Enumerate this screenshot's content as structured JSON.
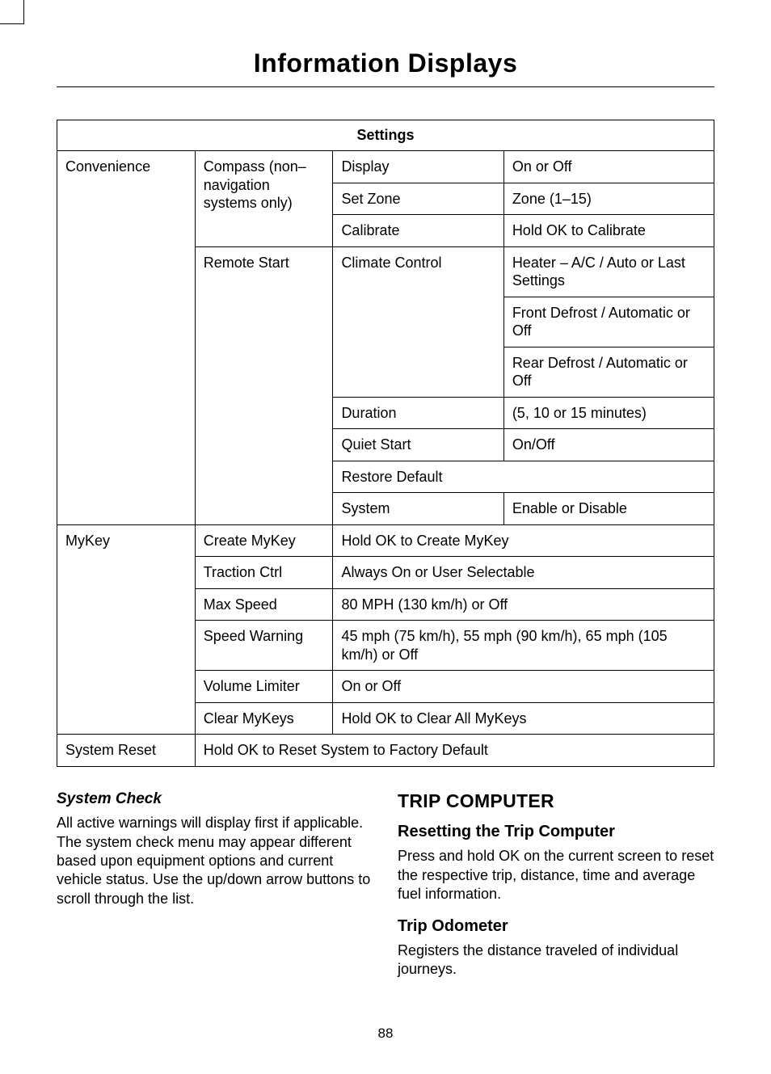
{
  "page": {
    "title": "Information Displays",
    "number": "88"
  },
  "table": {
    "header": "Settings",
    "col_widths": [
      "21%",
      "21%",
      "26%",
      "32%"
    ],
    "rows": [
      {
        "c0": {
          "text": "Convenience",
          "rowspan": 9
        },
        "c1": {
          "text": "Compass (non–navigation systems only)",
          "rowspan": 3
        },
        "c2": {
          "text": "Display"
        },
        "c3": {
          "text": "On or Off"
        }
      },
      {
        "c2": {
          "text": "Set Zone"
        },
        "c3": {
          "text": "Zone (1–15)"
        }
      },
      {
        "c2": {
          "text": "Calibrate"
        },
        "c3": {
          "text": "Hold OK to Calibrate"
        }
      },
      {
        "c1": {
          "text": "Remote Start",
          "rowspan": 6
        },
        "c2": {
          "text": "Climate Control",
          "rowspan": 3
        },
        "c3": {
          "text": "Heater – A/C / Auto or Last Settings"
        }
      },
      {
        "c3": {
          "text": "Front Defrost / Automatic or Off"
        }
      },
      {
        "c3": {
          "text": "Rear Defrost / Automatic or Off"
        }
      },
      {
        "c2": {
          "text": "Duration"
        },
        "c3": {
          "text": "(5, 10 or 15 minutes)"
        }
      },
      {
        "c2": {
          "text": "Quiet Start"
        },
        "c3": {
          "text": "On/Off"
        }
      },
      {
        "c2": {
          "text": "Restore Default",
          "colspan": 2
        }
      },
      {
        "c0_skip": true,
        "c2": {
          "text": "System"
        },
        "c3": {
          "text": "Enable or Disable"
        }
      },
      {
        "c0": {
          "text": "MyKey",
          "rowspan": 6
        },
        "c1": {
          "text": "Create MyKey"
        },
        "c2": {
          "text": "Hold OK to Create MyKey",
          "colspan": 2
        }
      },
      {
        "c1": {
          "text": "Traction Ctrl"
        },
        "c2": {
          "text": "Always On or User Selectable",
          "colspan": 2
        }
      },
      {
        "c1": {
          "text": "Max Speed"
        },
        "c2": {
          "text": "80 MPH (130 km/h) or Off",
          "colspan": 2
        }
      },
      {
        "c1": {
          "text": "Speed Warning"
        },
        "c2": {
          "text": "45 mph (75 km/h), 55 mph (90 km/h), 65 mph (105 km/h) or Off",
          "colspan": 2
        }
      },
      {
        "c1": {
          "text": "Volume Limiter"
        },
        "c2": {
          "text": "On or Off",
          "colspan": 2
        }
      },
      {
        "c1": {
          "text": "Clear MyKeys"
        },
        "c2": {
          "text": "Hold OK to Clear All MyKeys",
          "colspan": 2
        }
      },
      {
        "c0": {
          "text": "System Reset"
        },
        "c1": {
          "text": "Hold OK to Reset System to Factory Default",
          "colspan": 3
        }
      }
    ]
  },
  "left_col": {
    "heading": "System Check",
    "para": "All active warnings will display first if applicable. The system check menu may appear different based upon equipment options and current vehicle status. Use the up/down arrow buttons to scroll through the list."
  },
  "right_col": {
    "h1": "TRIP COMPUTER",
    "h2a": "Resetting the Trip Computer",
    "p1": "Press and hold OK on the current screen to reset the respective trip, distance, time and average fuel information.",
    "h2b": "Trip Odometer",
    "p2": "Registers the distance traveled of individual journeys."
  }
}
